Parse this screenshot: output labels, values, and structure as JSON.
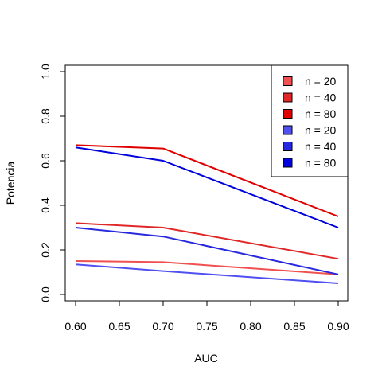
{
  "chart_data": {
    "type": "line",
    "title": "",
    "xlabel": "AUC",
    "ylabel": "Potencia",
    "xlim": [
      0.6,
      0.9
    ],
    "ylim": [
      0.0,
      1.0
    ],
    "xticks": [
      "0.60",
      "0.65",
      "0.70",
      "0.75",
      "0.80",
      "0.85",
      "0.90"
    ],
    "yticks": [
      "0.0",
      "0.2",
      "0.4",
      "0.6",
      "0.8",
      "1.0"
    ],
    "x": [
      0.6,
      0.7,
      0.9
    ],
    "legend_position": "top-right",
    "grid": false,
    "series": [
      {
        "name": "n = 20",
        "color": "#F05050",
        "values": [
          0.15,
          0.145,
          0.09
        ]
      },
      {
        "name": "n = 40",
        "color": "#E02828",
        "values": [
          0.32,
          0.3,
          0.16
        ]
      },
      {
        "name": "n = 80",
        "color": "#E00000",
        "values": [
          0.67,
          0.655,
          0.35
        ]
      },
      {
        "name": "n = 20",
        "color": "#5050F0",
        "values": [
          0.135,
          0.105,
          0.05
        ]
      },
      {
        "name": "n = 40",
        "color": "#2828E0",
        "values": [
          0.3,
          0.26,
          0.09
        ]
      },
      {
        "name": "n = 80",
        "color": "#0000DD",
        "values": [
          0.66,
          0.6,
          0.3
        ]
      }
    ]
  }
}
